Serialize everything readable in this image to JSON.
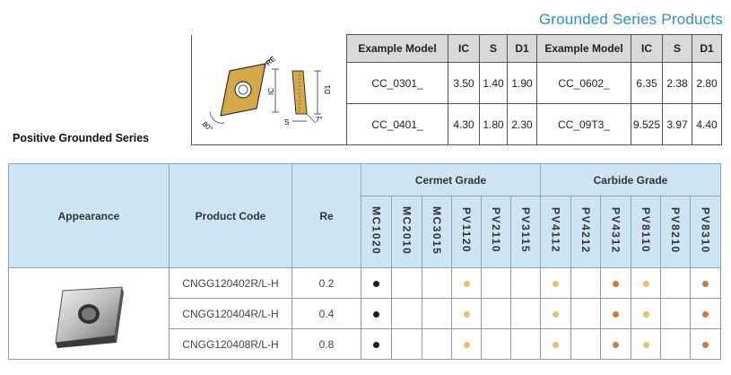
{
  "page_title": "Grounded Series Products",
  "example_table": {
    "headers": [
      "Example Model",
      "IC",
      "S",
      "D1",
      "Example Model",
      "IC",
      "S",
      "D1"
    ],
    "rows": [
      [
        "CC_0301_",
        "3.50",
        "1.40",
        "1.90",
        "CC_0602_",
        "6.35",
        "2.38",
        "2.80"
      ],
      [
        "CC_0401_",
        "4.30",
        "1.80",
        "2.30",
        "CC_09T3_",
        "9.525",
        "3.97",
        "4.40"
      ]
    ]
  },
  "diagram_labels": {
    "re": "RE",
    "ic": "IC",
    "d1": "D1",
    "s": "S",
    "angle7": "7°",
    "angle80": "80°"
  },
  "series_label": "Positive Grounded Series",
  "main_table": {
    "appearance": "Appearance",
    "product_code": "Product Code",
    "re": "Re",
    "cermet_grade": "Cermet Grade",
    "carbide_grade": "Carbide Grade",
    "cermet_grades": [
      "MC1020",
      "MC2010",
      "MC3015",
      "PV1120",
      "PV2110",
      "PV3115"
    ],
    "carbide_grades": [
      "PV4112",
      "PV4212",
      "PV4312",
      "PV8110",
      "PV8210",
      "PV8310"
    ],
    "rows": [
      {
        "code": "CNGG120402R/L-H",
        "re": "0.2",
        "marks": [
          "black",
          "",
          "",
          "gold",
          "",
          "",
          "gold",
          "",
          "orange",
          "gold",
          "",
          "orange"
        ]
      },
      {
        "code": "CNGG120404R/L-H",
        "re": "0.4",
        "marks": [
          "black",
          "",
          "",
          "gold",
          "",
          "",
          "gold",
          "",
          "orange",
          "gold",
          "",
          "orange"
        ]
      },
      {
        "code": "CNGG120408R/L-H",
        "re": "0.8",
        "marks": [
          "black",
          "",
          "",
          "gold",
          "",
          "",
          "gold",
          "",
          "orange",
          "gold",
          "",
          "orange"
        ]
      }
    ]
  }
}
